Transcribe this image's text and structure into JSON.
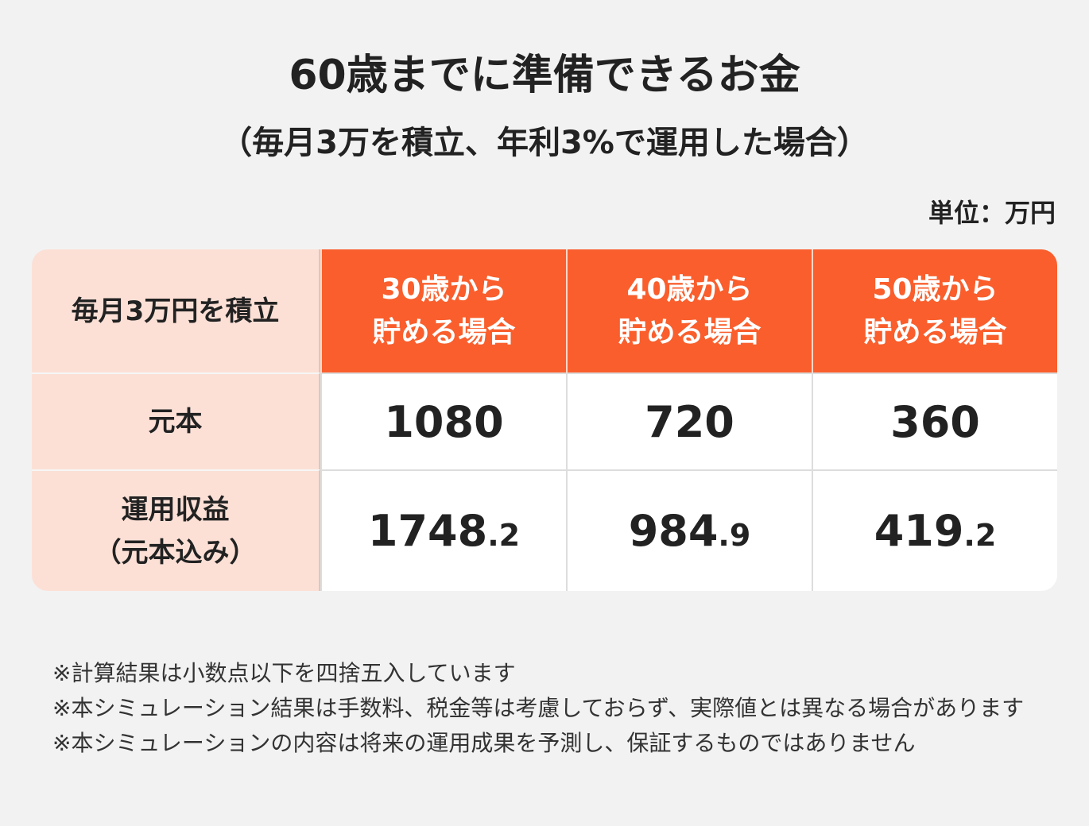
{
  "header": {
    "title": "60歳までに準備できるお金",
    "subtitle": "（毎月3万を積立、年利3%で運用した場合）",
    "unit": "単位：万円"
  },
  "table": {
    "columns": [
      "毎月3万円を積立",
      "30歳から\n貯める場合",
      "40歳から\n貯める場合",
      "50歳から\n貯める場合"
    ],
    "rows": [
      [
        "元本",
        "1080",
        "720",
        "360"
      ],
      [
        "運用収益\n（元本込み）",
        "1748.2",
        "984.9",
        "419.2"
      ]
    ]
  },
  "notes": [
    "※計算結果は小数点以下を四捨五入しています",
    "※本シミュレーション結果は手数料、税金等は考慮しておらず、実際値とは異なる場合があります",
    "※本シミュレーションの内容は将来の運用成果を予測し、保証するものではありません"
  ]
}
